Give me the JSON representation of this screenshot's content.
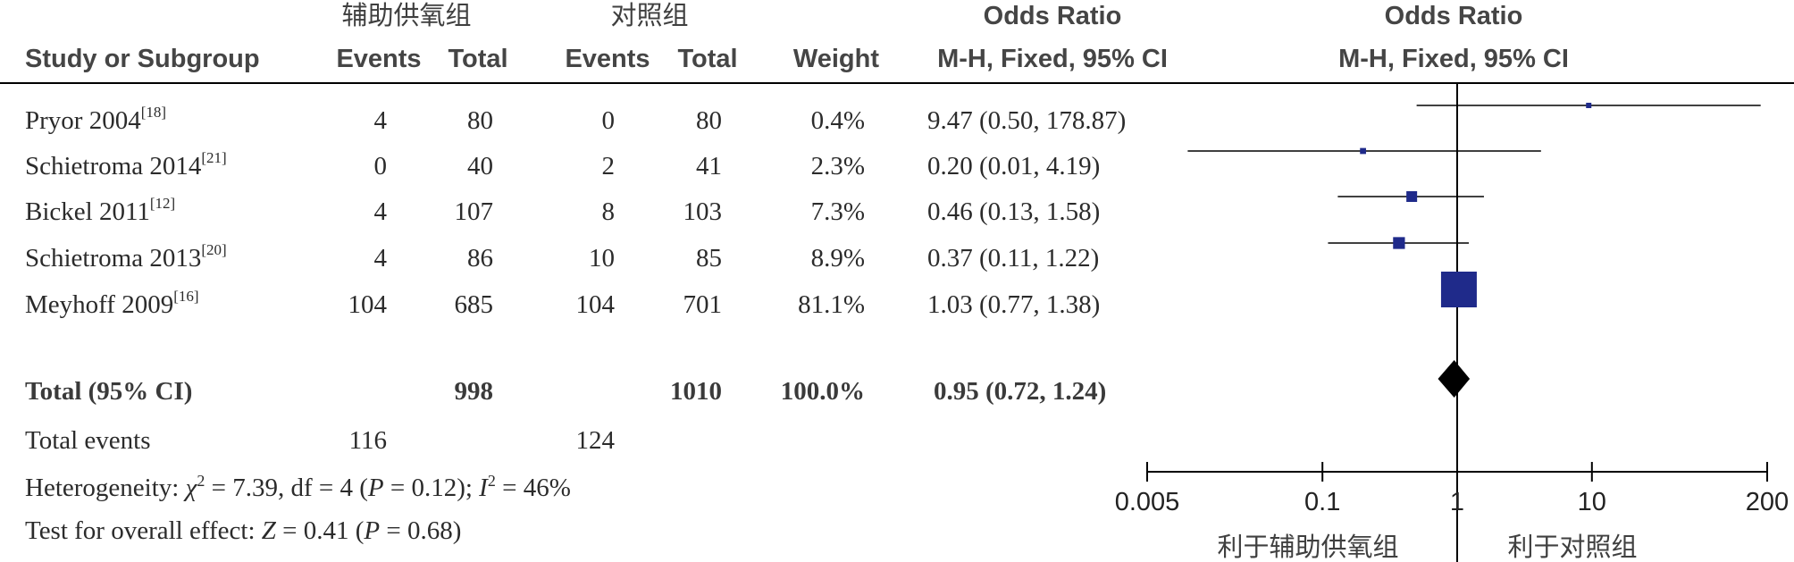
{
  "header": {
    "group_exp": "辅助供氧组",
    "group_ctrl": "对照组",
    "col_study": "Study or Subgroup",
    "col_events_exp": "Events",
    "col_total_exp": "Total",
    "col_events_ctrl": "Events",
    "col_total_ctrl": "Total",
    "col_weight": "Weight",
    "col_or_title": "Odds Ratio",
    "col_or_method": "M-H, Fixed, 95% CI",
    "plot_title": "Odds Ratio",
    "plot_method": "M-H, Fixed, 95% CI"
  },
  "chart_data": {
    "type": "forest",
    "x_scale": "log",
    "xlim": [
      0.005,
      200
    ],
    "null_value": 1,
    "x_ticks": [
      "0.005",
      "0.1",
      "1",
      "10",
      "200"
    ],
    "favours_left": "利于辅助供氧组",
    "favours_right": "利于对照组",
    "studies": [
      {
        "name": "Pryor 2004",
        "ref": "[18]",
        "events_exp": "4",
        "total_exp": "80",
        "events_ctrl": "0",
        "total_ctrl": "80",
        "weight": "0.4%",
        "or_text": "9.47 (0.50, 178.87)",
        "or": 9.47,
        "lo": 0.5,
        "hi": 178.87,
        "w": 0.4
      },
      {
        "name": "Schietroma 2014",
        "ref": "[21]",
        "events_exp": "0",
        "total_exp": "40",
        "events_ctrl": "2",
        "total_ctrl": "41",
        "weight": "2.3%",
        "or_text": "0.20 (0.01, 4.19)",
        "or": 0.2,
        "lo": 0.01,
        "hi": 4.19,
        "w": 2.3
      },
      {
        "name": "Bickel 2011",
        "ref": "[12]",
        "events_exp": "4",
        "total_exp": "107",
        "events_ctrl": "8",
        "total_ctrl": "103",
        "weight": "7.3%",
        "or_text": "0.46 (0.13, 1.58)",
        "or": 0.46,
        "lo": 0.13,
        "hi": 1.58,
        "w": 7.3
      },
      {
        "name": "Schietroma 2013",
        "ref": "[20]",
        "events_exp": "4",
        "total_exp": "86",
        "events_ctrl": "10",
        "total_ctrl": "85",
        "weight": "8.9%",
        "or_text": "0.37 (0.11, 1.22)",
        "or": 0.37,
        "lo": 0.11,
        "hi": 1.22,
        "w": 8.9
      },
      {
        "name": "Meyhoff 2009",
        "ref": "[16]",
        "events_exp": "104",
        "total_exp": "685",
        "events_ctrl": "104",
        "total_ctrl": "701",
        "weight": "81.1%",
        "or_text": "1.03 (0.77, 1.38)",
        "or": 1.03,
        "lo": 0.77,
        "hi": 1.38,
        "w": 81.1
      }
    ],
    "total": {
      "label": "Total (95% CI)",
      "total_exp": "998",
      "total_ctrl": "1010",
      "weight": "100.0%",
      "or_text": "0.95 (0.72, 1.24)",
      "or": 0.95,
      "lo": 0.72,
      "hi": 1.24
    },
    "total_events": {
      "label": "Total events",
      "exp": "116",
      "ctrl": "124"
    },
    "heterogeneity": {
      "prefix": "Heterogeneity: ",
      "chi": "χ",
      "sup2": "2",
      "chi_value": " = 7.39, df = 4 (",
      "p": "P",
      "p_value": " = 0.12); ",
      "i": "I",
      "i_value": " = 46%"
    },
    "overall_effect": {
      "prefix": "Test for overall effect: ",
      "z": "Z",
      "z_value": " = 0.41 (",
      "p": "P",
      "p_value": " = 0.68)"
    }
  }
}
